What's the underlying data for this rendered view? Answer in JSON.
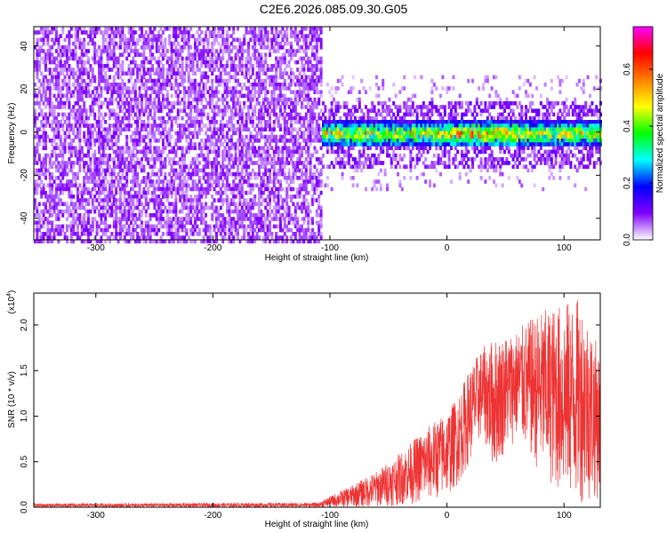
{
  "title": "C2E6.2026.085.09.30.G05",
  "chart_data": [
    {
      "type": "heatmap",
      "title": "C2E6.2026.085.09.30.G05",
      "xlabel": "Height of straight line (km)",
      "ylabel": "Frequency (Hz)",
      "xlim": [
        -353,
        131
      ],
      "ylim": [
        -50,
        49
      ],
      "xticks": [
        -300,
        -200,
        -100,
        0,
        100
      ],
      "xtick_labels": [
        "-300",
        "-200",
        "-100",
        "0",
        "100"
      ],
      "yticks": [
        -40,
        -20,
        0,
        20,
        40
      ],
      "ytick_labels": [
        "-40",
        "-20",
        "0",
        "20",
        "40"
      ],
      "colorbar": {
        "label": "Normalized spectral amplitude",
        "range": [
          0.0,
          0.75
        ],
        "ticks": [
          0.0,
          0.2,
          0.4,
          0.6
        ],
        "tick_labels": [
          "0.0",
          "0.2",
          "0.4",
          "0.6"
        ],
        "colors": [
          "#ffffff",
          "#8000ff",
          "#0000ff",
          "#00ffff",
          "#00ff00",
          "#ffff00",
          "#ff8000",
          "#ff0000",
          "#ff00ff"
        ]
      },
      "regions": [
        {
          "x_range": [
            -353,
            -108
          ],
          "freq_range": [
            -50,
            49
          ],
          "amplitude_range": [
            0.0,
            0.12
          ],
          "description": "broadband noise"
        },
        {
          "x_range": [
            -108,
            131
          ],
          "freq_center": 0,
          "freq_halfwidth": 6,
          "amplitude_range": [
            0.05,
            0.75
          ],
          "description": "signal band"
        }
      ]
    },
    {
      "type": "line",
      "xlabel": "Height of straight line (km)",
      "ylabel": "SNR (10 * v/v)",
      "y_multiplier": "(x10",
      "y_multiplier_exp": "4",
      "xlim": [
        -353,
        131
      ],
      "ylim": [
        0.0,
        2.35
      ],
      "xticks": [
        -300,
        -200,
        -100,
        0,
        100
      ],
      "xtick_labels": [
        "-300",
        "-200",
        "-100",
        "0",
        "100"
      ],
      "yticks": [
        0.0,
        0.5,
        1.0,
        1.5,
        2.0
      ],
      "ytick_labels": [
        "0.0",
        "0.5",
        "1.0",
        "1.5",
        "2.0"
      ],
      "series": [
        {
          "name": "SNR",
          "color": "#ee3333",
          "envelope": {
            "x": [
              -353,
              -110,
              -100,
              -80,
              -60,
              -40,
              -20,
              0,
              10,
              20,
              30,
              40,
              50,
              60,
              80,
              100,
              115,
              131
            ],
            "lower": [
              0.0,
              0.0,
              0.0,
              0.0,
              0.0,
              0.02,
              0.05,
              0.12,
              0.25,
              0.5,
              0.78,
              0.4,
              0.6,
              0.75,
              0.35,
              0.1,
              0.05,
              0.1
            ],
            "upper": [
              0.04,
              0.05,
              0.12,
              0.25,
              0.4,
              0.6,
              0.85,
              1.05,
              1.25,
              1.55,
              1.75,
              1.85,
              1.9,
              1.95,
              2.15,
              2.25,
              2.3,
              1.7
            ]
          }
        }
      ]
    }
  ]
}
